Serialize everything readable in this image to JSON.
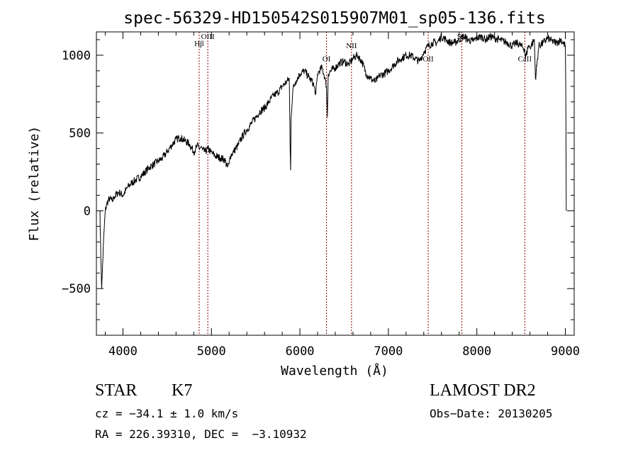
{
  "chart_data": {
    "type": "line",
    "title": "spec-56329-HD150542S015907M01_sp05-136.fits",
    "xlabel": "Wavelength (Å)",
    "ylabel": "Flux (relative)",
    "xlim": [
      3700,
      9100
    ],
    "ylim": [
      -800,
      1150
    ],
    "x_ticks": [
      4000,
      5000,
      6000,
      7000,
      8000,
      9000
    ],
    "x_tick_labels": [
      "4000",
      "5000",
      "6000",
      "7000",
      "8000",
      "9000"
    ],
    "y_ticks": [
      -500,
      0,
      500,
      1000
    ],
    "y_tick_labels": [
      "−500",
      "0",
      "500",
      "1000"
    ],
    "line_color": "#000000",
    "marker_color": "#8b0000",
    "spectrum": {
      "x": [
        3740,
        3750,
        3760,
        3770,
        3780,
        3790,
        3800,
        3820,
        3850,
        3880,
        3900,
        3950,
        4000,
        4050,
        4100,
        4150,
        4200,
        4250,
        4300,
        4350,
        4400,
        4450,
        4500,
        4550,
        4600,
        4650,
        4700,
        4750,
        4800,
        4850,
        4861,
        4880,
        4900,
        4930,
        4960,
        4990,
        5010,
        5050,
        5100,
        5150,
        5180,
        5200,
        5210,
        5250,
        5300,
        5350,
        5400,
        5450,
        5500,
        5550,
        5600,
        5650,
        5700,
        5750,
        5800,
        5850,
        5880,
        5890,
        5895,
        5900,
        5920,
        5950,
        6000,
        6050,
        6100,
        6150,
        6180,
        6200,
        6220,
        6250,
        6280,
        6300,
        6310,
        6320,
        6350,
        6400,
        6450,
        6500,
        6550,
        6600,
        6650,
        6700,
        6750,
        6800,
        6850,
        6880,
        6900,
        6950,
        7000,
        7050,
        7100,
        7150,
        7200,
        7250,
        7300,
        7350,
        7400,
        7450,
        7500,
        7550,
        7600,
        7650,
        7700,
        7750,
        7800,
        7850,
        7900,
        7950,
        8000,
        8050,
        8100,
        8150,
        8200,
        8250,
        8300,
        8350,
        8400,
        8450,
        8500,
        8540,
        8550,
        8580,
        8600,
        8650,
        8662,
        8700,
        8750,
        8800,
        8850,
        8900,
        8950,
        9000,
        9005,
        9010
      ],
      "y": [
        0,
        -300,
        -500,
        -350,
        -200,
        -100,
        0,
        50,
        80,
        60,
        90,
        120,
        100,
        150,
        180,
        200,
        220,
        250,
        280,
        300,
        320,
        340,
        380,
        420,
        460,
        470,
        450,
        430,
        380,
        420,
        400,
        410,
        390,
        380,
        400,
        380,
        370,
        350,
        340,
        330,
        280,
        300,
        350,
        380,
        420,
        480,
        520,
        560,
        600,
        640,
        660,
        700,
        740,
        760,
        800,
        830,
        850,
        400,
        260,
        600,
        780,
        830,
        880,
        900,
        860,
        820,
        750,
        880,
        900,
        920,
        860,
        800,
        600,
        880,
        900,
        920,
        950,
        960,
        940,
        980,
        1000,
        960,
        880,
        850,
        830,
        850,
        870,
        880,
        900,
        930,
        960,
        980,
        1000,
        1000,
        980,
        960,
        1020,
        1060,
        1080,
        1080,
        1120,
        1100,
        1080,
        1080,
        1100,
        1120,
        1100,
        1090,
        1110,
        1120,
        1100,
        1120,
        1110,
        1100,
        1090,
        1080,
        1060,
        1080,
        1060,
        1040,
        980,
        1060,
        1050,
        1100,
        850,
        1060,
        1080,
        1110,
        1090,
        1080,
        1100,
        1060,
        800,
        0
      ]
    },
    "line_markers": [
      {
        "label": "Hβ",
        "x": 4861,
        "label_y": 1060
      },
      {
        "label": "OIII",
        "x": 4959,
        "label_y": 1105
      },
      {
        "label": "OI",
        "x": 6300,
        "label_y": 960
      },
      {
        "label": "NII",
        "x": 6583,
        "label_y": 1045
      },
      {
        "label": "OII",
        "x": 7450,
        "label_y": 960
      },
      {
        "label": "SII",
        "x": 7830,
        "label_y": 1105
      },
      {
        "label": "CaII",
        "x": 8542,
        "label_y": 960
      }
    ]
  },
  "info": {
    "object_type": "STAR",
    "subclass": "K7",
    "cz": "cz = −34.1 ± 1.0 km/s",
    "coords": "RA = 226.39310, DEC =  −3.10932",
    "survey": "LAMOST DR2",
    "obs_date": "Obs−Date: 20130205"
  }
}
